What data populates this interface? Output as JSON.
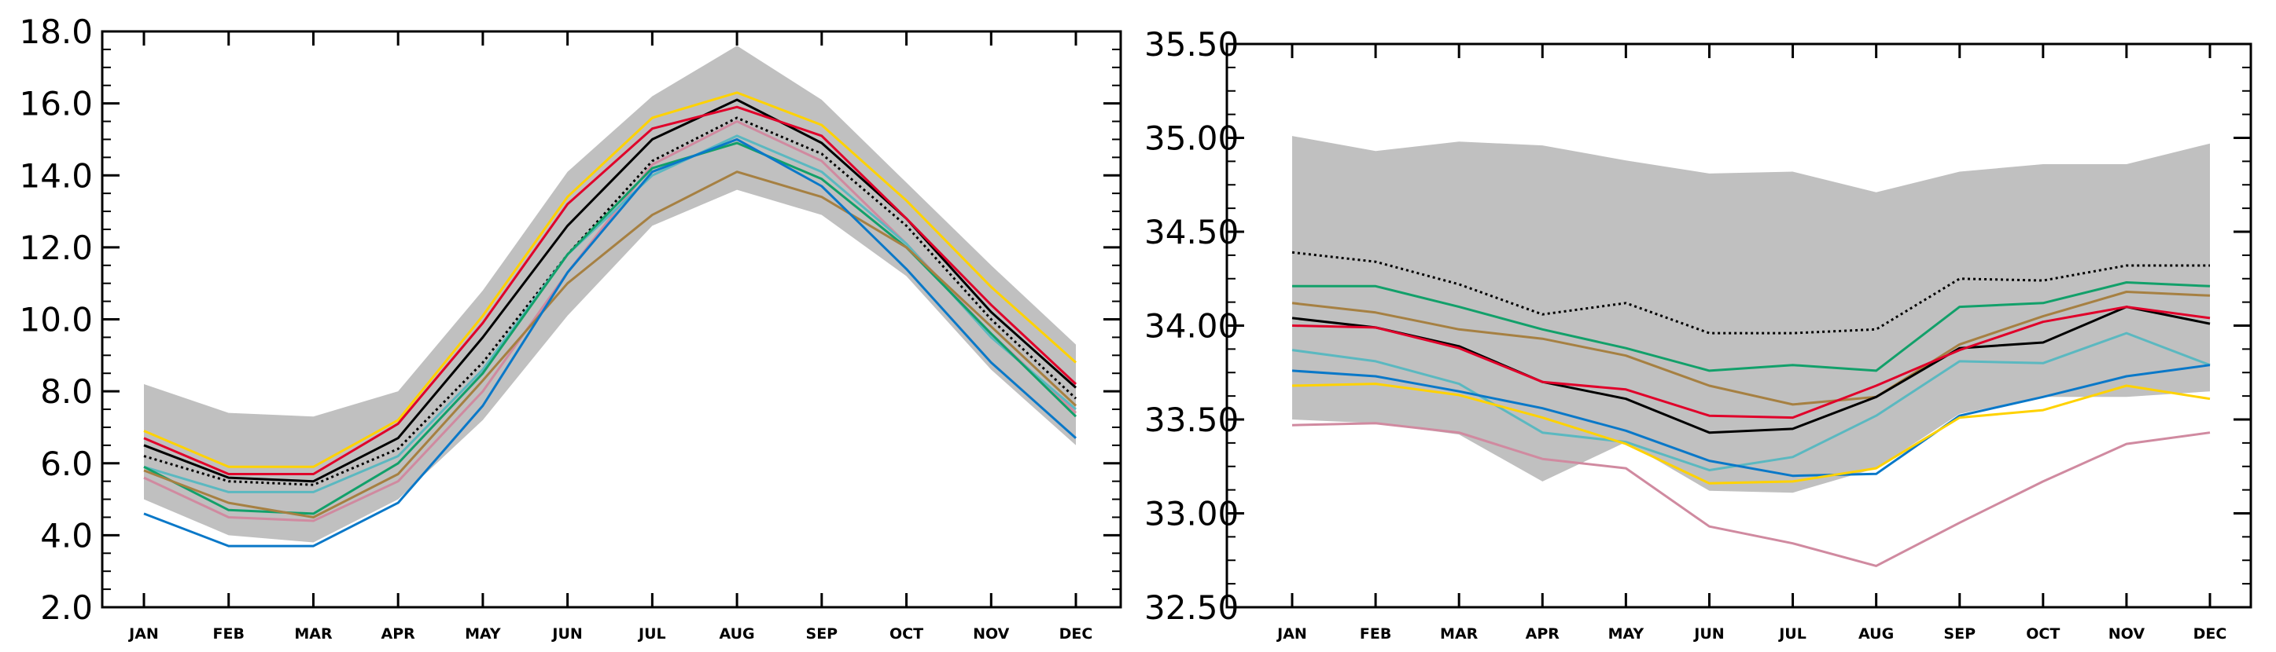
{
  "chart_data": [
    {
      "type": "line",
      "title": "",
      "xlabel": "",
      "ylabel": "",
      "categories": [
        "JAN",
        "FEB",
        "MAR",
        "APR",
        "MAY",
        "JUN",
        "JUL",
        "AUG",
        "SEP",
        "OCT",
        "NOV",
        "DEC"
      ],
      "ylim": [
        2.0,
        18.0
      ],
      "yticks": [
        2.0,
        4.0,
        6.0,
        8.0,
        10.0,
        12.0,
        14.0,
        16.0,
        18.0
      ],
      "ytick_labels": [
        "2.0",
        "4.0",
        "6.0",
        "8.0",
        "10.0",
        "12.0",
        "14.0",
        "16.0",
        "18.0"
      ],
      "grid": false,
      "envelope": {
        "color": "#c0c0c0",
        "upper": [
          8.2,
          7.4,
          7.3,
          8.0,
          10.8,
          14.1,
          16.2,
          17.6,
          16.1,
          13.8,
          11.5,
          9.3
        ],
        "lower": [
          5.0,
          4.0,
          3.8,
          5.0,
          7.2,
          10.1,
          12.6,
          13.6,
          12.9,
          11.2,
          8.6,
          6.5
        ]
      },
      "series": [
        {
          "name": "black-dotted",
          "color": "#000000",
          "dash": "dotted",
          "values": [
            6.2,
            5.5,
            5.4,
            6.4,
            8.8,
            11.8,
            14.4,
            15.6,
            14.6,
            12.6,
            10.0,
            7.8
          ]
        },
        {
          "name": "black",
          "color": "#000000",
          "dash": "solid",
          "values": [
            6.5,
            5.6,
            5.5,
            6.7,
            9.5,
            12.6,
            15.0,
            16.1,
            14.9,
            12.8,
            10.2,
            8.1
          ]
        },
        {
          "name": "yellow",
          "color": "#ffd200",
          "dash": "solid",
          "values": [
            6.9,
            5.9,
            5.9,
            7.2,
            10.1,
            13.4,
            15.6,
            16.3,
            15.4,
            13.3,
            10.9,
            8.8
          ]
        },
        {
          "name": "red",
          "color": "#e0002a",
          "dash": "solid",
          "values": [
            6.7,
            5.7,
            5.7,
            7.1,
            9.9,
            13.2,
            15.3,
            15.9,
            15.1,
            12.8,
            10.4,
            8.2
          ]
        },
        {
          "name": "pink",
          "color": "#d08aa0",
          "dash": "solid",
          "values": [
            5.6,
            4.5,
            4.4,
            5.5,
            8.0,
            11.3,
            14.3,
            15.5,
            14.4,
            12.1,
            9.6,
            7.4
          ]
        },
        {
          "name": "teal",
          "color": "#5bb8c0",
          "dash": "solid",
          "values": [
            5.9,
            5.2,
            5.2,
            6.2,
            8.6,
            11.8,
            14.0,
            15.1,
            14.1,
            12.1,
            9.5,
            7.5
          ]
        },
        {
          "name": "green",
          "color": "#12a06a",
          "dash": "solid",
          "values": [
            5.9,
            4.7,
            4.6,
            6.0,
            8.5,
            11.8,
            14.2,
            14.9,
            13.9,
            12.0,
            9.6,
            7.3
          ]
        },
        {
          "name": "brown",
          "color": "#a68042",
          "dash": "solid",
          "values": [
            5.8,
            4.9,
            4.5,
            5.7,
            8.3,
            11.0,
            12.9,
            14.1,
            13.4,
            12.0,
            9.8,
            7.6
          ]
        },
        {
          "name": "blue",
          "color": "#0a78c8",
          "dash": "solid",
          "values": [
            4.6,
            3.7,
            3.7,
            4.9,
            7.6,
            11.3,
            14.1,
            15.0,
            13.7,
            11.4,
            8.8,
            6.7
          ]
        }
      ]
    },
    {
      "type": "line",
      "title": "",
      "xlabel": "",
      "ylabel": "",
      "categories": [
        "JAN",
        "FEB",
        "MAR",
        "APR",
        "MAY",
        "JUN",
        "JUL",
        "AUG",
        "SEP",
        "OCT",
        "NOV",
        "DEC"
      ],
      "ylim": [
        32.5,
        35.5
      ],
      "yticks": [
        32.5,
        33.0,
        33.5,
        34.0,
        34.5,
        35.0,
        35.5
      ],
      "ytick_labels": [
        "32.50",
        "33.00",
        "33.50",
        "34.00",
        "34.50",
        "35.00",
        "35.50"
      ],
      "grid": false,
      "envelope": {
        "color": "#c0c0c0",
        "upper": [
          35.01,
          34.93,
          34.98,
          34.96,
          34.88,
          34.81,
          34.82,
          34.71,
          34.82,
          34.86,
          34.86,
          34.97
        ],
        "lower": [
          33.5,
          33.48,
          33.42,
          33.17,
          33.38,
          33.12,
          33.11,
          33.24,
          33.53,
          33.62,
          33.62,
          33.65
        ]
      },
      "series": [
        {
          "name": "black-dotted",
          "color": "#000000",
          "dash": "dotted",
          "values": [
            34.39,
            34.34,
            34.22,
            34.06,
            34.12,
            33.96,
            33.96,
            33.98,
            34.25,
            34.24,
            34.32,
            34.32
          ]
        },
        {
          "name": "green",
          "color": "#12a06a",
          "dash": "solid",
          "values": [
            34.21,
            34.21,
            34.1,
            33.98,
            33.88,
            33.76,
            33.79,
            33.76,
            34.1,
            34.12,
            34.23,
            34.21
          ]
        },
        {
          "name": "brown",
          "color": "#a68042",
          "dash": "solid",
          "values": [
            34.12,
            34.07,
            33.98,
            33.93,
            33.84,
            33.68,
            33.58,
            33.62,
            33.9,
            34.05,
            34.18,
            34.16
          ]
        },
        {
          "name": "black",
          "color": "#000000",
          "dash": "solid",
          "values": [
            34.04,
            33.99,
            33.89,
            33.7,
            33.61,
            33.43,
            33.45,
            33.62,
            33.88,
            33.91,
            34.1,
            34.01
          ]
        },
        {
          "name": "red",
          "color": "#e0002a",
          "dash": "solid",
          "values": [
            34.0,
            33.99,
            33.88,
            33.7,
            33.66,
            33.52,
            33.51,
            33.68,
            33.87,
            34.02,
            34.1,
            34.04
          ]
        },
        {
          "name": "teal",
          "color": "#5bb8c0",
          "dash": "solid",
          "values": [
            33.87,
            33.81,
            33.69,
            33.43,
            33.38,
            33.23,
            33.3,
            33.52,
            33.81,
            33.8,
            33.96,
            33.79
          ]
        },
        {
          "name": "blue",
          "color": "#0a78c8",
          "dash": "solid",
          "values": [
            33.76,
            33.73,
            33.65,
            33.56,
            33.44,
            33.28,
            33.2,
            33.21,
            33.52,
            33.62,
            33.73,
            33.79
          ]
        },
        {
          "name": "yellow",
          "color": "#ffd200",
          "dash": "solid",
          "values": [
            33.68,
            33.69,
            33.63,
            33.51,
            33.37,
            33.16,
            33.17,
            33.24,
            33.51,
            33.55,
            33.68,
            33.61
          ]
        },
        {
          "name": "pink",
          "color": "#d08aa0",
          "dash": "solid",
          "values": [
            33.47,
            33.48,
            33.43,
            33.29,
            33.24,
            32.93,
            32.84,
            32.72,
            32.95,
            33.17,
            33.37,
            33.43
          ]
        }
      ]
    }
  ]
}
